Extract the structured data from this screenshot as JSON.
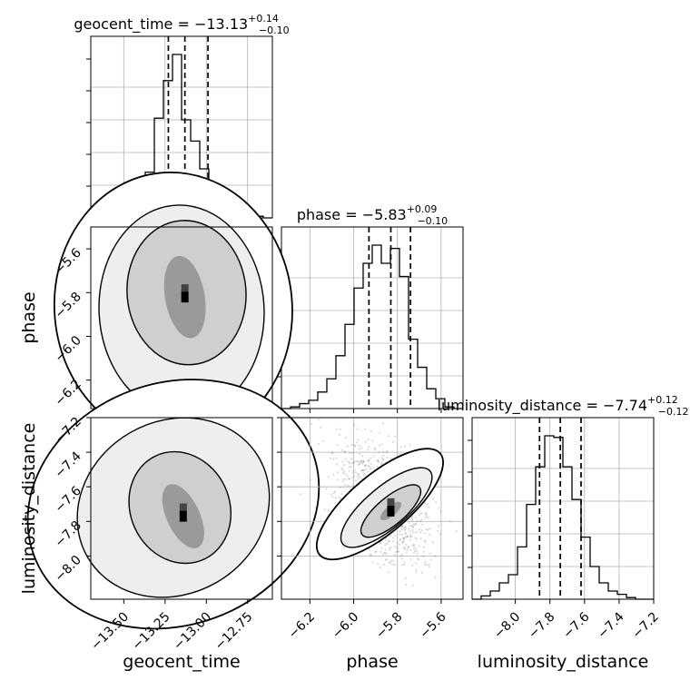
{
  "chart_data": [
    {
      "type": "histogram",
      "panel": "geocent_time",
      "title": {
        "base": "geocent_time = −13.13",
        "sup": "+0.14",
        "sub": "−0.10"
      },
      "xlim": [
        -13.7,
        -12.6
      ],
      "bin_edges": [
        -13.7,
        -13.645,
        -13.59,
        -13.535,
        -13.48,
        -13.425,
        -13.37,
        -13.315,
        -13.26,
        -13.205,
        -13.15,
        -13.095,
        -13.04,
        -12.985,
        -12.93,
        -12.875,
        -12.82,
        -12.765,
        -12.71,
        -12.655,
        -12.6
      ],
      "counts": [
        0,
        0.005,
        0.02,
        0.05,
        0.11,
        0.17,
        0.28,
        0.61,
        0.84,
        1.0,
        0.6,
        0.47,
        0.3,
        0.16,
        0.11,
        0.07,
        0.04,
        0.03,
        0.01,
        0.0
      ],
      "quantiles": [
        -13.23,
        -13.13,
        -12.99
      ],
      "grid": true
    },
    {
      "type": "histogram",
      "panel": "phase",
      "title": {
        "base": "phase = −5.83",
        "sup": "+0.09",
        "sub": "−0.10"
      },
      "xlim": [
        -6.33,
        -5.5
      ],
      "bin_edges": [
        -6.33,
        -6.2885,
        -6.247,
        -6.2055,
        -6.164,
        -6.1225,
        -6.081,
        -6.0395,
        -5.998,
        -5.9565,
        -5.915,
        -5.8735,
        -5.832,
        -5.7905,
        -5.749,
        -5.7075,
        -5.666,
        -5.6245,
        -5.583,
        -5.5415,
        -5.5
      ],
      "counts": [
        0,
        0.01,
        0.03,
        0.05,
        0.1,
        0.18,
        0.32,
        0.51,
        0.73,
        0.88,
        0.99,
        0.88,
        0.97,
        0.8,
        0.42,
        0.25,
        0.12,
        0.06,
        0.01,
        0
      ],
      "quantiles": [
        -5.93,
        -5.83,
        -5.74
      ],
      "grid": true
    },
    {
      "type": "histogram",
      "panel": "luminosity_distance",
      "title": {
        "base": "luminosity_distance = −7.74",
        "sup": "+0.12",
        "sub": "−0.12"
      },
      "xlim": [
        -8.25,
        -7.2
      ],
      "bin_edges": [
        -8.25,
        -8.1975,
        -8.145,
        -8.0925,
        -8.04,
        -7.9875,
        -7.935,
        -7.8825,
        -7.83,
        -7.7775,
        -7.725,
        -7.6725,
        -7.62,
        -7.5675,
        -7.515,
        -7.4625,
        -7.41,
        -7.3575,
        -7.305,
        -7.2525,
        -7.2
      ],
      "counts": [
        0,
        0.02,
        0.05,
        0.1,
        0.15,
        0.32,
        0.58,
        0.81,
        1.0,
        0.99,
        0.81,
        0.61,
        0.38,
        0.2,
        0.1,
        0.05,
        0.03,
        0.01,
        0,
        0
      ],
      "quantiles": [
        -7.86,
        -7.74,
        -7.62
      ],
      "grid": true
    },
    {
      "type": "2d-density",
      "x_param": "geocent_time",
      "y_param": "phase",
      "xlim": [
        -13.7,
        -12.6
      ],
      "ylim": [
        -6.33,
        -5.5
      ],
      "points": [
        [
          -13.13,
          -5.82,
          0.12,
          0.19,
          -10
        ],
        [
          -13.12,
          -5.8,
          0.36,
          0.33,
          -5
        ],
        [
          -13.15,
          -5.88,
          0.5,
          0.48,
          -3
        ],
        [
          -13.2,
          -5.87,
          0.72,
          0.62,
          -5
        ]
      ],
      "grid": true
    },
    {
      "type": "2d-density",
      "x_param": "geocent_time",
      "y_param": "luminosity_distance",
      "xlim": [
        -13.7,
        -12.6
      ],
      "ylim": [
        -8.25,
        -7.2
      ],
      "points": [
        [
          -13.14,
          -7.77,
          0.1,
          0.2,
          -25
        ],
        [
          -13.16,
          -7.72,
          0.3,
          0.33,
          -25
        ],
        [
          -13.2,
          -7.72,
          0.6,
          0.5,
          -30
        ],
        [
          -13.2,
          -7.7,
          0.9,
          0.7,
          -20
        ]
      ],
      "grid": true
    },
    {
      "type": "2d-density",
      "x_param": "phase",
      "y_param": "luminosity_distance",
      "xlim": [
        -6.33,
        -5.5
      ],
      "ylim": [
        -8.25,
        -7.2
      ],
      "points": [
        [
          -5.83,
          -7.74,
          0.06,
          0.03,
          -40
        ],
        [
          -5.83,
          -7.74,
          0.17,
          0.08,
          -40
        ],
        [
          -5.85,
          -7.72,
          0.26,
          0.12,
          -40
        ],
        [
          -5.88,
          -7.7,
          0.36,
          0.17,
          -40
        ]
      ],
      "grid": true
    }
  ],
  "axes": {
    "geocent_time": {
      "label": "geocent_time",
      "ticks": [
        -13.5,
        -13.25,
        -13.0,
        -12.75
      ],
      "tick_labels": [
        "−13.50",
        "−13.25",
        "−13.00",
        "−12.75"
      ]
    },
    "phase": {
      "label": "phase",
      "ticks": [
        -6.2,
        -6.0,
        -5.8,
        -5.6
      ],
      "tick_labels": [
        "−6.2",
        "−6.0",
        "−5.8",
        "−5.6"
      ]
    },
    "luminosity_distance": {
      "label": "luminosity_distance",
      "ticks": [
        -8.0,
        -7.8,
        -7.6,
        -7.4,
        -7.2
      ],
      "tick_labels": [
        "−8.0",
        "−7.8",
        "−7.6",
        "−7.4",
        "−7.2"
      ]
    }
  },
  "colors": {
    "line": "#000000",
    "grid": "#b0b0b0",
    "samples": "#555555"
  }
}
